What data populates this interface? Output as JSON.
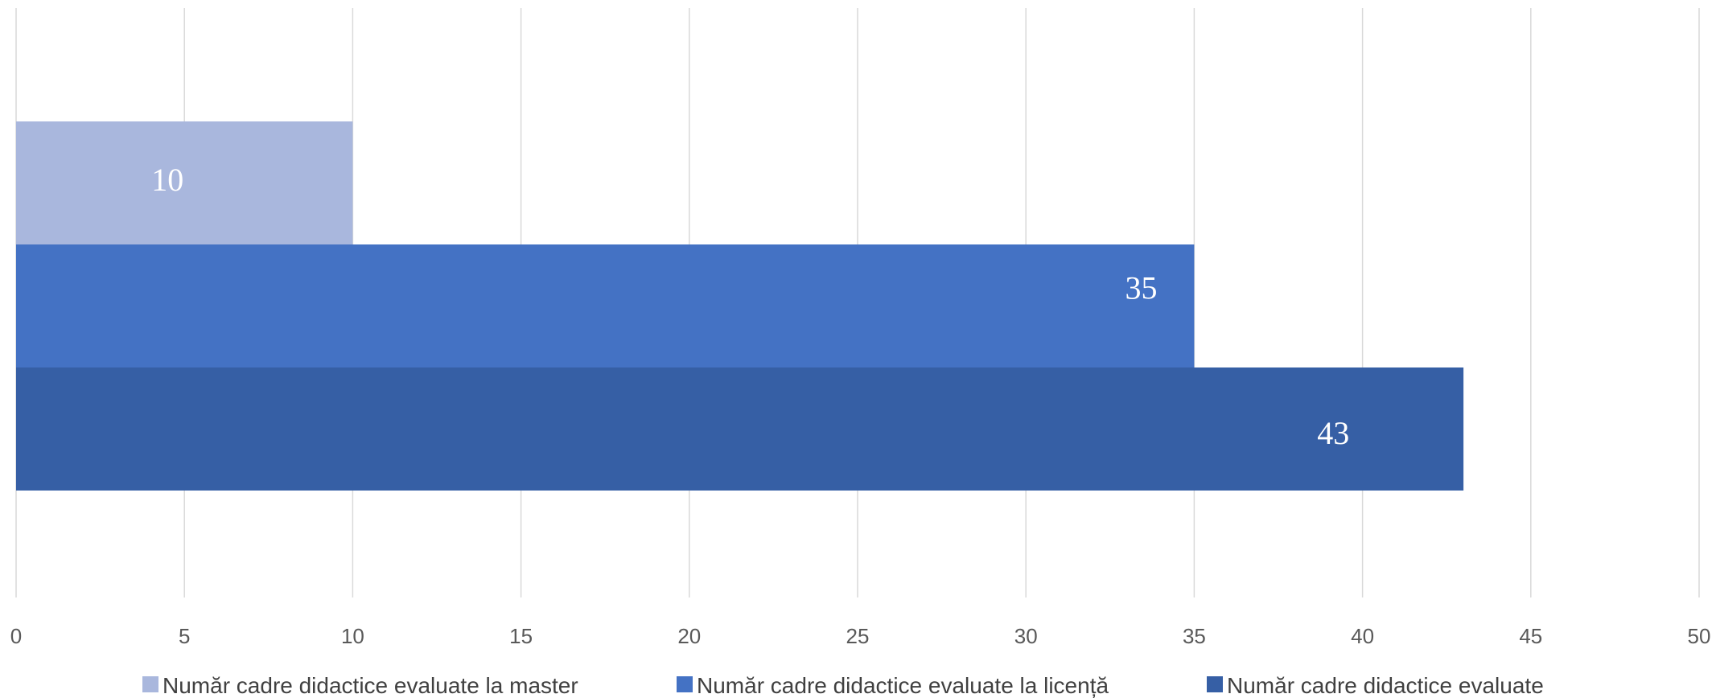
{
  "chart_data": {
    "type": "bar",
    "orientation": "horizontal",
    "xlim": [
      0,
      50
    ],
    "x_ticks": [
      0,
      5,
      10,
      15,
      20,
      25,
      30,
      35,
      40,
      45,
      50
    ],
    "grid": "vertical",
    "legend_position": "bottom",
    "series": [
      {
        "name": "Număr cadre didactice evaluate la master",
        "value": 10,
        "label": "10",
        "color": "#a9b7dd"
      },
      {
        "name": "Număr cadre didactice evaluate la licență",
        "value": 35,
        "label": "35",
        "color": "#4472c4"
      },
      {
        "name": "Număr cadre didactice evaluate",
        "value": 43,
        "label": "43",
        "color": "#365fa5"
      }
    ]
  }
}
